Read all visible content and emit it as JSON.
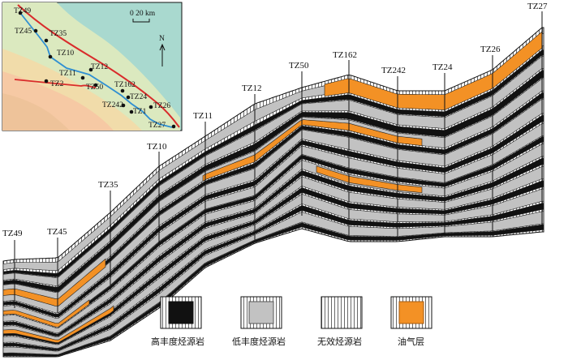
{
  "colors": {
    "high": "#111111",
    "low": "#c2c2c2",
    "ineffective": "#ffffff",
    "oil": "#f39125",
    "map_sea": "#a9d9cf",
    "map_land_a": "#dbe9bf",
    "map_land_b": "#f1dcaa",
    "map_land_c": "#f6c9a4",
    "map_line_blue": "#2f8fd2",
    "map_line_red": "#d92b2b"
  },
  "wells": [
    {
      "id": "tz49",
      "name": "TZ49"
    },
    {
      "id": "tz45",
      "name": "TZ45"
    },
    {
      "id": "tz35",
      "name": "TZ35"
    },
    {
      "id": "tz10",
      "name": "TZ10"
    },
    {
      "id": "tz11",
      "name": "TZ11"
    },
    {
      "id": "tz12",
      "name": "TZ12"
    },
    {
      "id": "tz50",
      "name": "TZ50"
    },
    {
      "id": "tz162",
      "name": "TZ162"
    },
    {
      "id": "tz242",
      "name": "TZ242"
    },
    {
      "id": "tz24",
      "name": "TZ24"
    },
    {
      "id": "tz26",
      "name": "TZ26"
    },
    {
      "id": "tz27",
      "name": "TZ27"
    }
  ],
  "inset": {
    "scale_label": "0  20 km",
    "north_label": "N",
    "labels": [
      {
        "id": "tz49",
        "text": "TZ49"
      },
      {
        "id": "tz45",
        "text": "TZ45"
      },
      {
        "id": "tz35",
        "text": "TZ35"
      },
      {
        "id": "tz10",
        "text": "TZ10"
      },
      {
        "id": "tz12",
        "text": "TZ12"
      },
      {
        "id": "tz11",
        "text": "TZ11"
      },
      {
        "id": "tz2",
        "text": "TZ2"
      },
      {
        "id": "tz50",
        "text": "TZ50"
      },
      {
        "id": "tz162",
        "text": "TZ162"
      },
      {
        "id": "tz24",
        "text": "TZ24"
      },
      {
        "id": "tz242",
        "text": "TZ242"
      },
      {
        "id": "tz1",
        "text": "TZ1"
      },
      {
        "id": "tz26",
        "text": "TZ26"
      },
      {
        "id": "tz27",
        "text": "TZ27"
      }
    ]
  },
  "legend": [
    {
      "id": "high",
      "label": "高丰度烃源岩"
    },
    {
      "id": "low",
      "label": "低丰度烃源岩"
    },
    {
      "id": "ineffective",
      "label": "无效烃源岩"
    },
    {
      "id": "oil",
      "label": "油气层"
    }
  ]
}
